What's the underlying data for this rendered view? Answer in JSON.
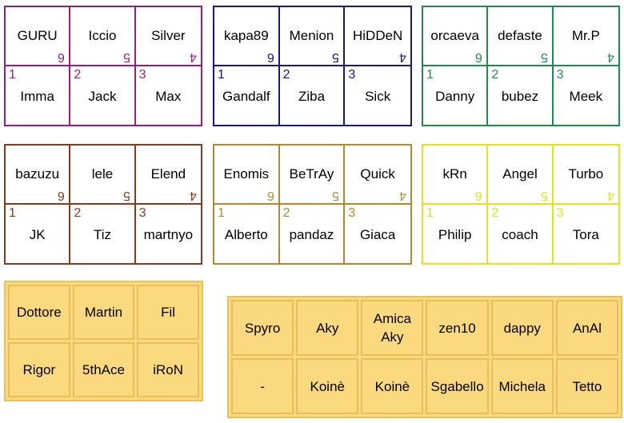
{
  "colors": {
    "magenta": "#9b1b7e",
    "blue": "#16168e",
    "green": "#1b8f4a",
    "brown": "#8b3a17",
    "gold": "#b8862b",
    "yellow": "#e3e31a",
    "panel_fill": "#fad97f",
    "panel_border": "#e6c15d"
  },
  "groups": [
    {
      "color": "#9b1b7e",
      "top": [
        {
          "name": "GURU",
          "num": "6"
        },
        {
          "name": "Iccio",
          "num": "5"
        },
        {
          "name": "Silver",
          "num": "4"
        }
      ],
      "bottom": [
        {
          "name": "Imma",
          "num": "1"
        },
        {
          "name": "Jack",
          "num": "2"
        },
        {
          "name": "Max",
          "num": "3"
        }
      ]
    },
    {
      "color": "#16168e",
      "top": [
        {
          "name": "kapa89",
          "num": "6"
        },
        {
          "name": "Menion",
          "num": "5"
        },
        {
          "name": "HiDDeN",
          "num": "4"
        }
      ],
      "bottom": [
        {
          "name": "Gandalf",
          "num": "1"
        },
        {
          "name": "Ziba",
          "num": "2"
        },
        {
          "name": "Sick",
          "num": "3"
        }
      ]
    },
    {
      "color": "#1b8f4a",
      "top": [
        {
          "name": "orcaeva",
          "num": "6"
        },
        {
          "name": "defaste",
          "num": "5"
        },
        {
          "name": "Mr.P",
          "num": "4"
        }
      ],
      "bottom": [
        {
          "name": "Danny",
          "num": "1"
        },
        {
          "name": "bubez",
          "num": "2"
        },
        {
          "name": "Meek",
          "num": "3"
        }
      ]
    },
    {
      "color": "#8b3a17",
      "top": [
        {
          "name": "bazuzu",
          "num": "6"
        },
        {
          "name": "lele",
          "num": "5"
        },
        {
          "name": "Elend",
          "num": "4"
        }
      ],
      "bottom": [
        {
          "name": "JK",
          "num": "1"
        },
        {
          "name": "Tiz",
          "num": "2"
        },
        {
          "name": "martnyo",
          "num": "3"
        }
      ]
    },
    {
      "color": "#b8862b",
      "top": [
        {
          "name": "Enomis",
          "num": "6"
        },
        {
          "name": "BeTrAy",
          "num": "5"
        },
        {
          "name": "Quick",
          "num": "4"
        }
      ],
      "bottom": [
        {
          "name": "Alberto",
          "num": "1"
        },
        {
          "name": "pandaz",
          "num": "2"
        },
        {
          "name": "Giaca",
          "num": "3"
        }
      ]
    },
    {
      "color": "#e3e31a",
      "top": [
        {
          "name": "kRn",
          "num": "6"
        },
        {
          "name": "Angel",
          "num": "5"
        },
        {
          "name": "Turbo",
          "num": "4"
        }
      ],
      "bottom": [
        {
          "name": "Philip",
          "num": "1"
        },
        {
          "name": "coach",
          "num": "2"
        },
        {
          "name": "Tora",
          "num": "3"
        }
      ]
    }
  ],
  "panel_a": [
    "Dottore",
    "Martin",
    "Fil",
    "Rigor",
    "5thAce",
    "iRoN"
  ],
  "panel_b": [
    "Spyro",
    "Aky",
    "Amica\nAky",
    "zen10",
    "dappy",
    "AnAl",
    "-",
    "Koinè",
    "Koinè",
    "Sgabello",
    "Michela",
    "Tetto"
  ]
}
